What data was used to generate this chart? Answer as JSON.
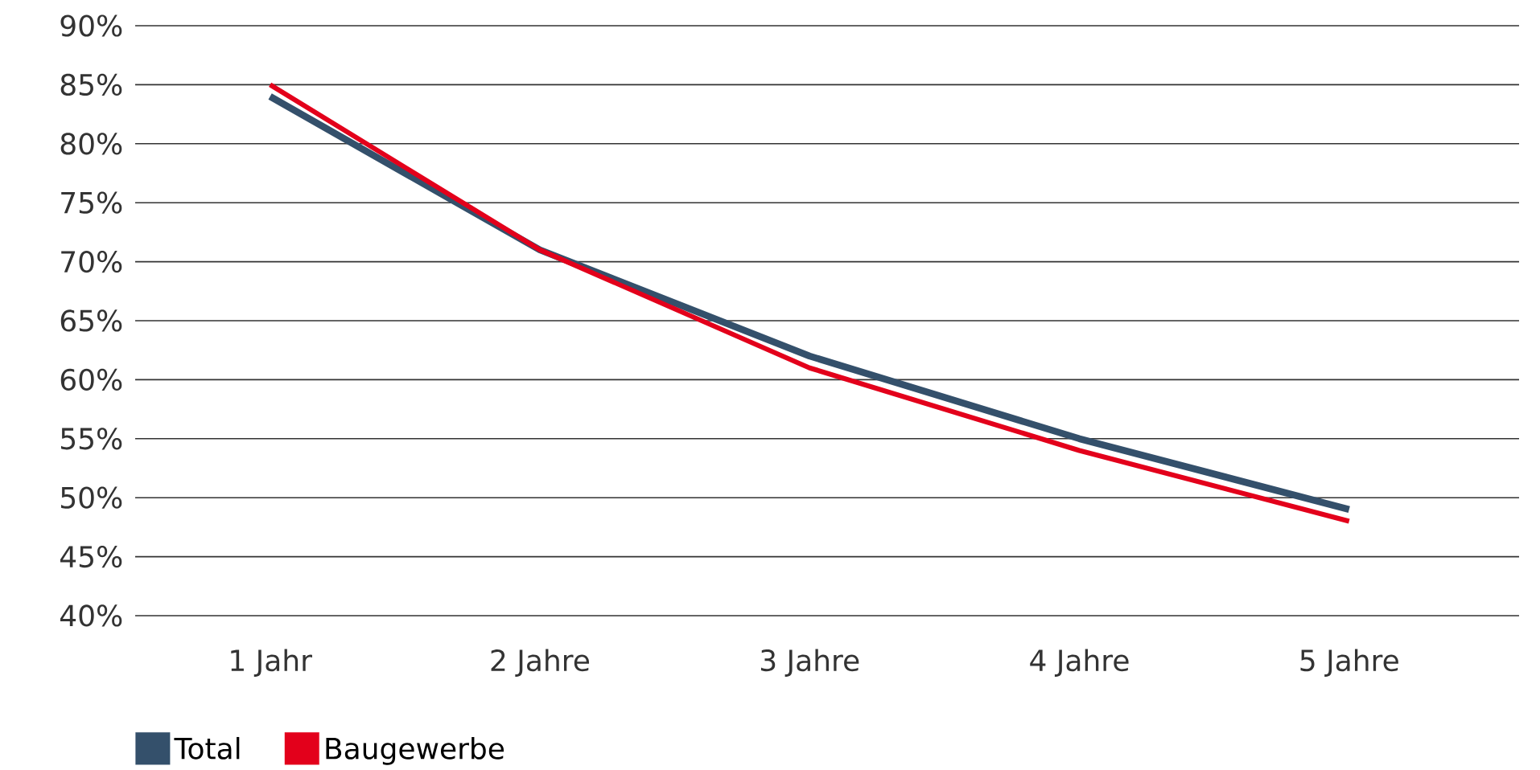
{
  "chart_data": {
    "type": "line",
    "categories": [
      "1 Jahr",
      "2 Jahre",
      "3 Jahre",
      "4 Jahre",
      "5 Jahre"
    ],
    "series": [
      {
        "name": "Total",
        "color": "#34506b",
        "values": [
          84,
          71,
          62,
          55,
          49
        ]
      },
      {
        "name": "Baugewerbe",
        "color": "#e3001b",
        "values": [
          85,
          71,
          61,
          54,
          48
        ]
      }
    ],
    "ylim": [
      40,
      90
    ],
    "yticks": [
      {
        "value": 40,
        "label": "40%"
      },
      {
        "value": 45,
        "label": "45%"
      },
      {
        "value": 50,
        "label": "50%"
      },
      {
        "value": 55,
        "label": "55%"
      },
      {
        "value": 60,
        "label": "60%"
      },
      {
        "value": 65,
        "label": "65%"
      },
      {
        "value": 70,
        "label": "70%"
      },
      {
        "value": 75,
        "label": "75%"
      },
      {
        "value": 80,
        "label": "80%"
      },
      {
        "value": 85,
        "label": "85%"
      },
      {
        "value": 90,
        "label": "90%"
      }
    ],
    "grid": "y",
    "legend": "bottom left"
  }
}
